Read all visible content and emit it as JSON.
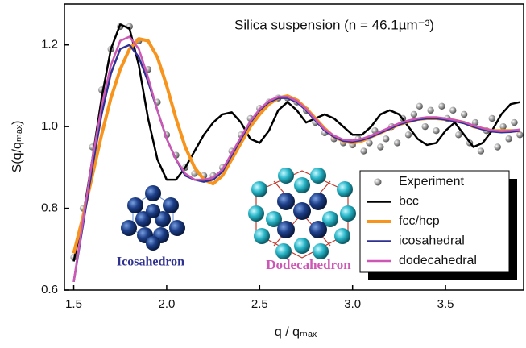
{
  "chart_data": {
    "type": "line",
    "title": "Silica suspension (n = 46.1µm⁻³)",
    "x_label": "q / qₘₐₓ",
    "y_label": "S(q/qₘₐₓ)",
    "annotations": [
      "Icosahedron",
      "Dodecahedron"
    ],
    "xlim": [
      1.45,
      3.92
    ],
    "ylim": [
      0.6,
      1.3
    ],
    "xticks": [
      1.5,
      {
        "value": 2,
        "label": "2.0"
      },
      2.5,
      {
        "value": 3,
        "label": "3.0"
      },
      3.5
    ],
    "yticks": [
      0.6,
      0.8,
      {
        "value": 1,
        "label": "1.0"
      },
      1.2
    ],
    "legend": "lower right",
    "series": [
      {
        "name": "Experiment",
        "color": "#9a9a9a",
        "mode": "markers",
        "x": [
          1.5,
          1.55,
          1.6,
          1.65,
          1.7,
          1.75,
          1.8,
          1.85,
          1.9,
          1.95,
          2.0,
          2.05,
          2.1,
          2.15,
          2.2,
          2.25,
          2.3,
          2.35,
          2.4,
          2.45,
          2.5,
          2.55,
          2.6,
          2.65,
          2.7,
          2.75,
          2.8,
          2.85,
          2.9,
          2.95,
          3.0,
          3.03,
          3.06,
          3.09,
          3.12,
          3.15,
          3.18,
          3.21,
          3.24,
          3.27,
          3.3,
          3.33,
          3.36,
          3.39,
          3.42,
          3.45,
          3.48,
          3.51,
          3.54,
          3.57,
          3.6,
          3.63,
          3.66,
          3.69,
          3.72,
          3.75,
          3.78,
          3.81,
          3.84,
          3.87,
          3.9
        ],
        "values": [
          0.68,
          0.8,
          0.95,
          1.09,
          1.19,
          1.245,
          1.245,
          1.21,
          1.14,
          1.06,
          0.98,
          0.93,
          0.9,
          0.885,
          0.88,
          0.88,
          0.9,
          0.94,
          0.98,
          1.02,
          1.045,
          1.06,
          1.07,
          1.07,
          1.06,
          1.04,
          1.01,
          0.985,
          0.97,
          0.96,
          0.955,
          0.97,
          0.94,
          0.96,
          0.99,
          0.95,
          0.97,
          1.0,
          0.96,
          1.02,
          0.98,
          1.03,
          1.05,
          1.0,
          1.04,
          0.99,
          1.05,
          1.02,
          1.04,
          0.98,
          1.03,
          0.96,
          1.01,
          0.94,
          0.99,
          1.02,
          0.95,
          1.0,
          0.97,
          1.01,
          0.98
        ]
      },
      {
        "name": "bcc",
        "color": "#000000",
        "mode": "lines",
        "width": 2.5,
        "x": [
          1.5,
          1.55,
          1.6,
          1.65,
          1.7,
          1.75,
          1.8,
          1.85,
          1.9,
          1.95,
          2.0,
          2.05,
          2.1,
          2.15,
          2.2,
          2.25,
          2.3,
          2.35,
          2.4,
          2.45,
          2.5,
          2.55,
          2.6,
          2.65,
          2.7,
          2.75,
          2.8,
          2.85,
          2.9,
          2.95,
          3.0,
          3.05,
          3.1,
          3.15,
          3.2,
          3.25,
          3.3,
          3.35,
          3.4,
          3.45,
          3.5,
          3.55,
          3.6,
          3.65,
          3.7,
          3.75,
          3.8,
          3.85,
          3.9
        ],
        "values": [
          0.67,
          0.78,
          0.92,
          1.07,
          1.19,
          1.25,
          1.24,
          1.15,
          1.02,
          0.92,
          0.87,
          0.87,
          0.9,
          0.94,
          0.98,
          1.01,
          1.03,
          1.035,
          1.01,
          0.97,
          0.96,
          0.99,
          1.04,
          1.06,
          1.04,
          1.01,
          1.02,
          1.03,
          1.02,
          1.0,
          0.98,
          0.98,
          1.0,
          1.03,
          1.04,
          1.03,
          1.0,
          0.97,
          0.955,
          0.96,
          0.99,
          1.01,
          0.98,
          0.95,
          0.96,
          0.99,
          1.03,
          1.055,
          1.06
        ]
      },
      {
        "name": "fcc/hcp",
        "color": "#f7941d",
        "mode": "lines",
        "width": 4,
        "x": [
          1.5,
          1.55,
          1.6,
          1.65,
          1.7,
          1.75,
          1.8,
          1.85,
          1.9,
          1.95,
          2.0,
          2.05,
          2.1,
          2.15,
          2.2,
          2.25,
          2.3,
          2.35,
          2.4,
          2.45,
          2.5,
          2.55,
          2.6,
          2.65,
          2.7,
          2.75,
          2.8,
          2.85,
          2.9,
          2.95,
          3.0,
          3.05,
          3.1,
          3.15,
          3.2,
          3.25,
          3.3,
          3.35,
          3.4,
          3.45,
          3.5,
          3.55,
          3.6,
          3.65,
          3.7,
          3.75,
          3.8,
          3.85,
          3.9
        ],
        "values": [
          0.69,
          0.78,
          0.88,
          0.98,
          1.07,
          1.14,
          1.19,
          1.215,
          1.21,
          1.17,
          1.1,
          1.02,
          0.95,
          0.9,
          0.87,
          0.86,
          0.88,
          0.92,
          0.96,
          1.0,
          1.03,
          1.055,
          1.07,
          1.075,
          1.065,
          1.045,
          1.02,
          0.995,
          0.975,
          0.965,
          0.96,
          0.965,
          0.975,
          0.985,
          0.995,
          1.005,
          1.012,
          1.018,
          1.02,
          1.02,
          1.018,
          1.015,
          1.01,
          1.0,
          0.995,
          0.99,
          0.99,
          0.99,
          0.99
        ]
      },
      {
        "name": "icosahedral",
        "color": "#2e3192",
        "mode": "lines",
        "width": 2.5,
        "x": [
          1.5,
          1.55,
          1.6,
          1.65,
          1.7,
          1.75,
          1.8,
          1.85,
          1.9,
          1.95,
          2.0,
          2.05,
          2.1,
          2.15,
          2.2,
          2.25,
          2.3,
          2.35,
          2.4,
          2.45,
          2.5,
          2.55,
          2.6,
          2.65,
          2.7,
          2.75,
          2.8,
          2.85,
          2.9,
          2.95,
          3.0,
          3.05,
          3.1,
          3.15,
          3.2,
          3.25,
          3.3,
          3.35,
          3.4,
          3.45,
          3.5,
          3.55,
          3.6,
          3.65,
          3.7,
          3.75,
          3.8,
          3.85,
          3.9
        ],
        "values": [
          0.62,
          0.76,
          0.9,
          1.03,
          1.13,
          1.19,
          1.2,
          1.17,
          1.11,
          1.04,
          0.97,
          0.92,
          0.88,
          0.87,
          0.865,
          0.87,
          0.89,
          0.93,
          0.97,
          1.01,
          1.04,
          1.06,
          1.07,
          1.07,
          1.06,
          1.04,
          1.015,
          0.99,
          0.975,
          0.965,
          0.963,
          0.967,
          0.975,
          0.985,
          0.995,
          1.005,
          1.012,
          1.017,
          1.02,
          1.02,
          1.017,
          1.013,
          1.008,
          1.0,
          0.993,
          0.988,
          0.986,
          0.987,
          0.99
        ]
      },
      {
        "name": "dodecahedral",
        "color": "#cc57b4",
        "mode": "lines",
        "width": 2.5,
        "x": [
          1.5,
          1.55,
          1.6,
          1.65,
          1.7,
          1.75,
          1.8,
          1.85,
          1.9,
          1.95,
          2.0,
          2.05,
          2.1,
          2.15,
          2.2,
          2.25,
          2.3,
          2.35,
          2.4,
          2.45,
          2.5,
          2.55,
          2.6,
          2.65,
          2.7,
          2.75,
          2.8,
          2.85,
          2.9,
          2.95,
          3.0,
          3.05,
          3.1,
          3.15,
          3.2,
          3.25,
          3.3,
          3.35,
          3.4,
          3.45,
          3.5,
          3.55,
          3.6,
          3.65,
          3.7,
          3.75,
          3.8,
          3.85,
          3.9
        ],
        "values": [
          0.62,
          0.77,
          0.92,
          1.05,
          1.15,
          1.21,
          1.22,
          1.19,
          1.12,
          1.04,
          0.97,
          0.92,
          0.885,
          0.87,
          0.87,
          0.875,
          0.895,
          0.935,
          0.975,
          1.013,
          1.043,
          1.063,
          1.073,
          1.073,
          1.063,
          1.043,
          1.018,
          0.993,
          0.978,
          0.968,
          0.966,
          0.97,
          0.978,
          0.988,
          0.998,
          1.008,
          1.015,
          1.02,
          1.023,
          1.023,
          1.02,
          1.016,
          1.011,
          1.003,
          0.996,
          0.991,
          0.989,
          0.99,
          0.993
        ]
      }
    ]
  }
}
